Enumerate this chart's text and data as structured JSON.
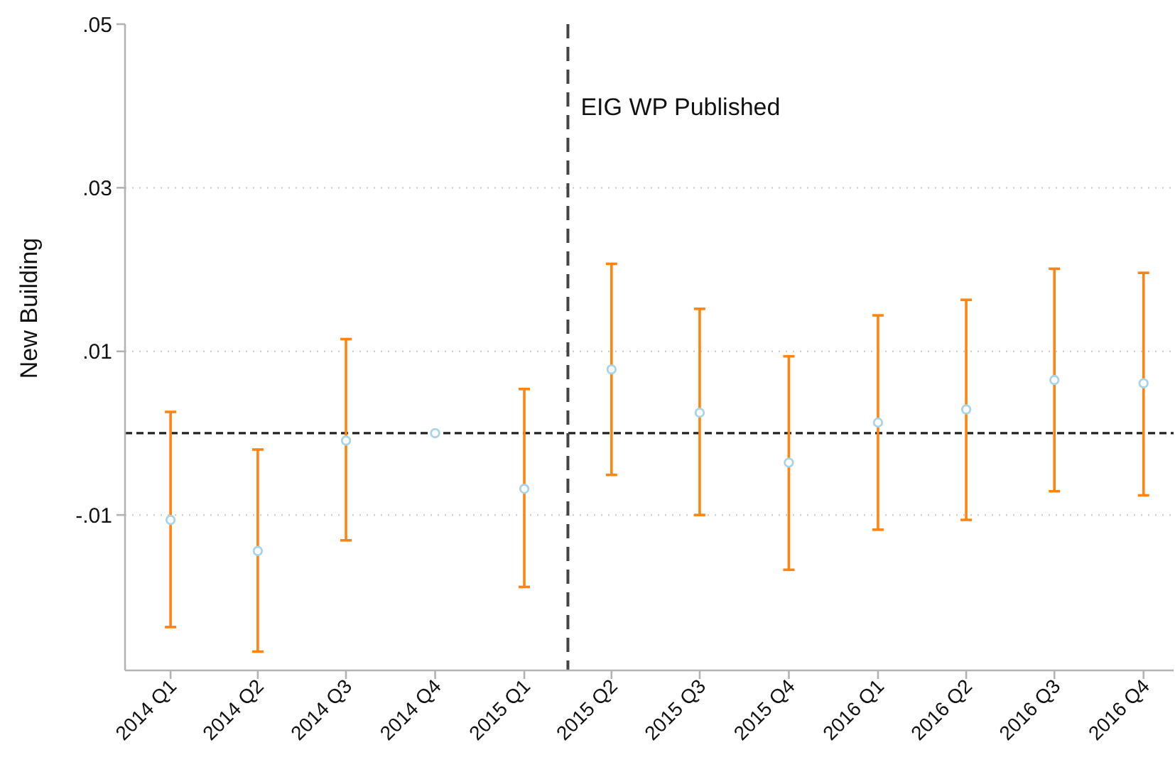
{
  "chart_data": {
    "type": "scatter",
    "ylabel": "New Building",
    "x": [
      "2014-01",
      "2014-04",
      "2014-07",
      "2014-10",
      "2015-01",
      "2015-04",
      "2015-07",
      "2015-10",
      "2016-01",
      "2016-04",
      "2016-07",
      "2016-10"
    ],
    "xlim": [
      "2013-11-15",
      "2016-11-01"
    ],
    "xticks": [
      {
        "value": "2014-01",
        "label": "2014 Q1"
      },
      {
        "value": "2014-04",
        "label": "2014 Q2"
      },
      {
        "value": "2014-07",
        "label": "2014 Q3"
      },
      {
        "value": "2014-10",
        "label": "2014 Q4"
      },
      {
        "value": "2015-01",
        "label": "2015 Q1"
      },
      {
        "value": "2015-04",
        "label": "2015 Q2"
      },
      {
        "value": "2015-07",
        "label": "2015 Q3"
      },
      {
        "value": "2015-10",
        "label": "2015 Q4"
      },
      {
        "value": "2016-01",
        "label": "2016 Q1"
      },
      {
        "value": "2016-04",
        "label": "2016 Q2"
      },
      {
        "value": "2016-07",
        "label": "2016 Q3"
      },
      {
        "value": "2016-10",
        "label": "2016 Q4"
      }
    ],
    "ylim": [
      -0.029,
      0.05
    ],
    "yticks": [
      {
        "value": 0.05,
        "label": ".05"
      },
      {
        "value": 0.03,
        "label": ".03"
      },
      {
        "value": 0.01,
        "label": ".01"
      },
      {
        "value": -0.01,
        "label": "-.01"
      }
    ],
    "series": [
      {
        "color": "#a8d4e6",
        "values": [
          -0.0106,
          -0.0144,
          -0.0009,
          0.0,
          -0.0068,
          0.0078,
          0.0025,
          -0.0036,
          0.0013,
          0.0029,
          0.0065,
          0.0061
        ],
        "errors": [
          [
            -0.0237,
            0.0026
          ],
          [
            -0.0267,
            -0.002
          ],
          [
            -0.0131,
            0.0115
          ],
          null,
          [
            -0.0188,
            0.0054
          ],
          [
            -0.0051,
            0.0207
          ],
          [
            -0.01,
            0.0152
          ],
          [
            -0.0167,
            0.0094
          ],
          [
            -0.0118,
            0.0144
          ],
          [
            -0.0106,
            0.0163
          ],
          [
            -0.0071,
            0.0201
          ],
          [
            -0.0076,
            0.0196
          ]
        ]
      }
    ],
    "ref_lines": [
      {
        "axis": "y",
        "value": 0,
        "line_style": "dashed",
        "color": "#222222"
      },
      {
        "axis": "x",
        "value": "2015-02-15",
        "label": "EIG WP Published",
        "line_style": "dashed",
        "color": "#444444"
      }
    ],
    "grid": "y",
    "marker": "circle"
  }
}
